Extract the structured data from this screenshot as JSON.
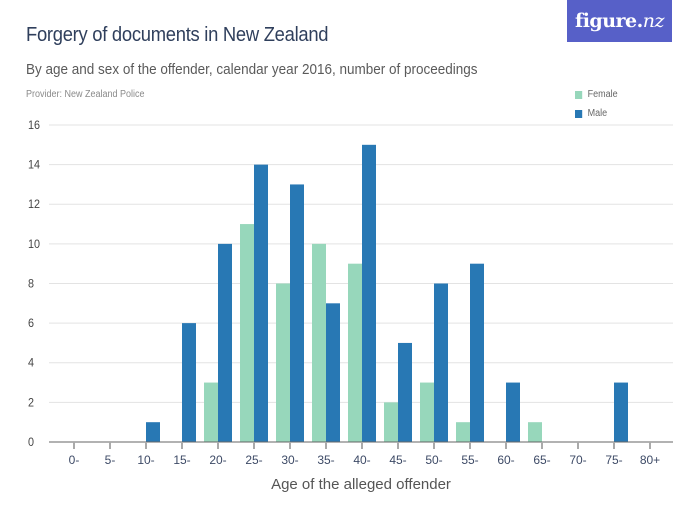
{
  "header": {
    "title": "Forgery of documents in New Zealand",
    "subtitle": "By age and sex of the offender, calendar year 2016, number of proceedings",
    "provider": "Provider: New Zealand Police"
  },
  "logo": {
    "text": "figure.",
    "accent": "nz"
  },
  "legend": [
    {
      "label": "Female",
      "color": "#97d7bb"
    },
    {
      "label": "Male",
      "color": "#2878b4"
    }
  ],
  "chart_data": {
    "type": "bar",
    "title": "Forgery of documents in New Zealand",
    "subtitle": "By age and sex of the offender, calendar year 2016, number of proceedings",
    "xlabel": "Age of the alleged offender",
    "ylabel": "",
    "ylim": [
      0,
      16
    ],
    "yticks": [
      0,
      2,
      4,
      6,
      8,
      10,
      12,
      14,
      16
    ],
    "grid": true,
    "legend_position": "top-right",
    "categories": [
      "0-",
      "5-",
      "10-",
      "15-",
      "20-",
      "25-",
      "30-",
      "35-",
      "40-",
      "45-",
      "50-",
      "55-",
      "60-",
      "65-",
      "70-",
      "75-",
      "80+"
    ],
    "series": [
      {
        "name": "Female",
        "color": "#97d7bb",
        "values": [
          0,
          0,
          0,
          0,
          3,
          11,
          8,
          10,
          9,
          2,
          3,
          1,
          0,
          1,
          0,
          0,
          0
        ]
      },
      {
        "name": "Male",
        "color": "#2878b4",
        "values": [
          0,
          0,
          1,
          6,
          10,
          14,
          13,
          7,
          15,
          5,
          8,
          9,
          3,
          0,
          0,
          3,
          0
        ]
      }
    ]
  }
}
